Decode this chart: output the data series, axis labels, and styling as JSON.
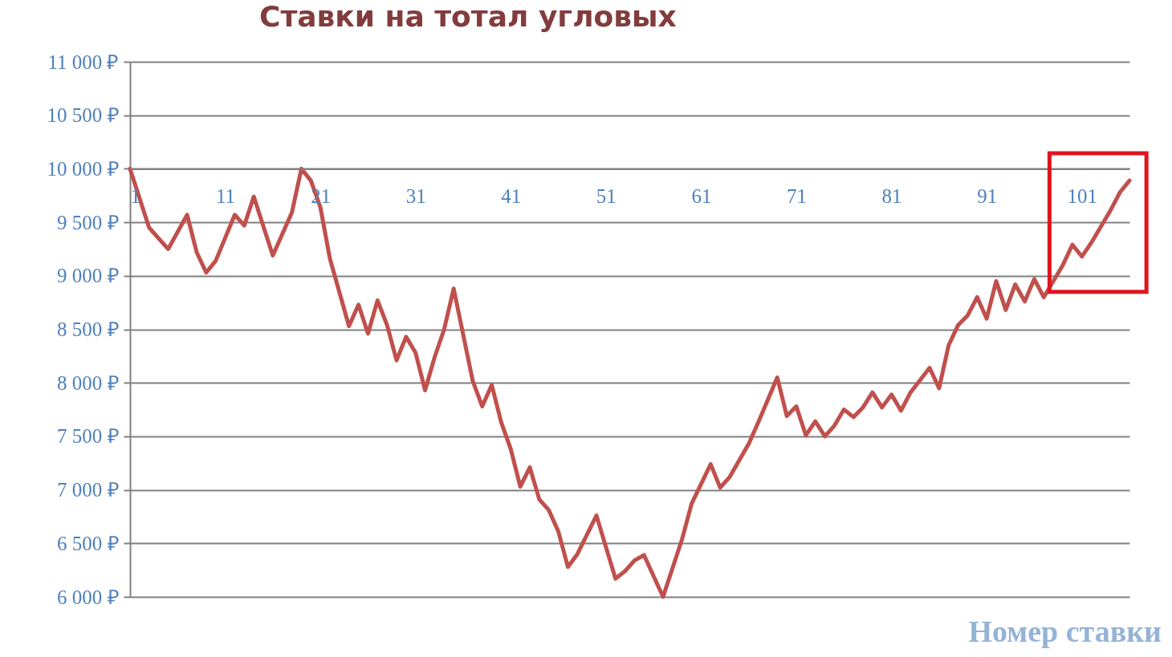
{
  "chart_data": {
    "type": "line",
    "title": "Ставки на тотал угловых",
    "xlabel": "Номер ставки",
    "x": [
      1,
      3,
      5,
      7,
      8,
      9,
      10,
      12,
      13,
      14,
      16,
      18,
      19,
      20,
      21,
      22,
      24,
      25,
      26,
      27,
      28,
      29,
      30,
      31,
      32,
      33,
      34,
      35,
      37,
      38,
      39,
      40,
      41,
      42,
      43,
      44,
      45,
      46,
      47,
      48,
      50,
      52,
      53,
      54,
      55,
      57,
      59,
      60,
      62,
      63,
      64,
      66,
      67,
      69,
      70,
      71,
      72,
      73,
      74,
      75,
      76,
      77,
      78,
      79,
      80,
      81,
      82,
      83,
      85,
      86,
      87,
      88,
      89,
      90,
      91,
      92,
      93,
      94,
      95,
      96,
      97,
      98,
      99,
      100,
      101,
      102,
      104,
      105,
      106
    ],
    "series": [
      {
        "color": "#c0504d",
        "values": [
          10000,
          9450,
          9250,
          9570,
          9220,
          9030,
          9140,
          9570,
          9470,
          9740,
          9190,
          9590,
          10000,
          9890,
          9640,
          9160,
          8530,
          8730,
          8460,
          8770,
          8540,
          8210,
          8430,
          8280,
          7930,
          8240,
          8500,
          8880,
          8020,
          7780,
          7980,
          7630,
          7380,
          7030,
          7210,
          6910,
          6810,
          6610,
          6280,
          6400,
          6760,
          6170,
          6240,
          6340,
          6390,
          6000,
          6540,
          6870,
          7240,
          7020,
          7120,
          7430,
          7630,
          8050,
          7690,
          7780,
          7510,
          7640,
          7500,
          7600,
          7750,
          7680,
          7770,
          7910,
          7770,
          7890,
          7740,
          7910,
          8140,
          7950,
          8350,
          8540,
          8630,
          8800,
          8600,
          8950,
          8680,
          8920,
          8760,
          8970,
          8800,
          8950,
          9100,
          9290,
          9180,
          9310,
          9610,
          9780,
          9890
        ]
      }
    ],
    "xlim": [
      1,
      106
    ],
    "xticks": [
      1,
      11,
      21,
      31,
      41,
      51,
      61,
      71,
      81,
      91,
      101
    ],
    "ylim": [
      6000,
      11000
    ],
    "yticks": [
      {
        "value": 6000,
        "label": "6 000 ₽"
      },
      {
        "value": 6500,
        "label": "6 500 ₽"
      },
      {
        "value": 7000,
        "label": "7 000 ₽"
      },
      {
        "value": 7500,
        "label": "7 500 ₽"
      },
      {
        "value": 8000,
        "label": "8 000 ₽"
      },
      {
        "value": 8500,
        "label": "8 500 ₽"
      },
      {
        "value": 9000,
        "label": "9 000 ₽"
      },
      {
        "value": 9500,
        "label": "9 500 ₽"
      },
      {
        "value": 10000,
        "label": "10 000 ₽"
      },
      {
        "value": 10500,
        "label": "10 500 ₽"
      },
      {
        "value": 11000,
        "label": "11 000 ₽"
      }
    ],
    "grid": "y"
  }
}
